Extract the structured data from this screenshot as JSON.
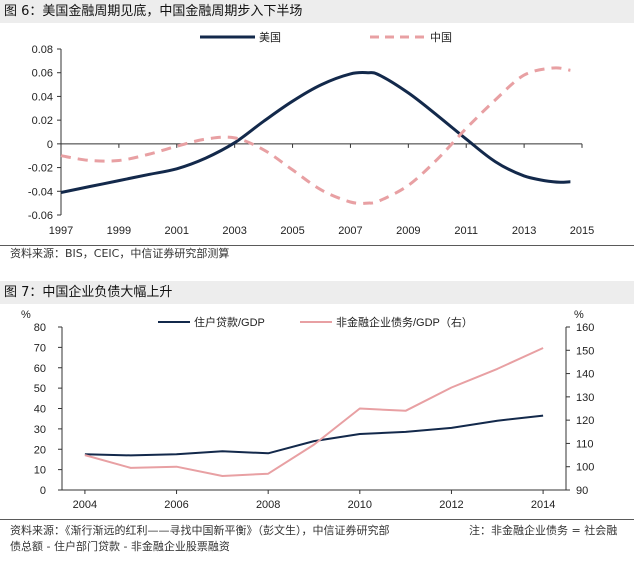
{
  "figures": [
    {
      "title": "图 6：美国金融周期见底，中国金融周期步入下半场",
      "source": "资料来源：BIS，CEIC，中信证券研究部测算"
    },
    {
      "title": "图 7：中国企业负债大幅上升",
      "source_line1": "资料来源：《渐行渐远的红利——寻找中国新平衡》（彭文生），中信证券研究部",
      "source_line2": "债总额 - 住户部门贷款 - 非金融企业股票融资",
      "note": "注：非金融企业债务 = 社会融"
    }
  ],
  "chart_data": [
    {
      "type": "line",
      "title": "美国金融周期见底，中国金融周期步入下半场",
      "xlim": [
        1997,
        2015
      ],
      "ylim": [
        -0.06,
        0.08
      ],
      "xticks": [
        "1997",
        "1999",
        "2001",
        "2003",
        "2005",
        "2007",
        "2009",
        "2011",
        "2013",
        "2015"
      ],
      "yticks": [
        "0.08",
        "0.06",
        "0.04",
        "0.02",
        "0",
        "-0.02",
        "-0.04",
        "-0.06"
      ],
      "grid": false,
      "legend": "top",
      "series": [
        {
          "name": "美国",
          "color": "#13294b",
          "dash": false,
          "points": [
            [
              1997,
              -0.041
            ],
            [
              1998,
              -0.036
            ],
            [
              1999,
              -0.031
            ],
            [
              2000,
              -0.026
            ],
            [
              2001,
              -0.021
            ],
            [
              2002,
              -0.012
            ],
            [
              2003,
              0.001
            ],
            [
              2004,
              0.019
            ],
            [
              2005,
              0.036
            ],
            [
              2006,
              0.05
            ],
            [
              2007,
              0.059
            ],
            [
              2007.6,
              0.06
            ],
            [
              2008,
              0.058
            ],
            [
              2009,
              0.043
            ],
            [
              2010,
              0.024
            ],
            [
              2011,
              0.004
            ],
            [
              2012,
              -0.015
            ],
            [
              2013,
              -0.027
            ],
            [
              2014,
              -0.032
            ],
            [
              2014.6,
              -0.032
            ]
          ]
        },
        {
          "name": "中国",
          "color": "#e8a0a3",
          "dash": true,
          "points": [
            [
              1997,
              -0.01
            ],
            [
              1998,
              -0.014
            ],
            [
              1999,
              -0.014
            ],
            [
              2000,
              -0.009
            ],
            [
              2001,
              -0.002
            ],
            [
              2002,
              0.004
            ],
            [
              2003,
              0.005
            ],
            [
              2004,
              -0.005
            ],
            [
              2005,
              -0.022
            ],
            [
              2006,
              -0.039
            ],
            [
              2007,
              -0.049
            ],
            [
              2007.6,
              -0.05
            ],
            [
              2008,
              -0.048
            ],
            [
              2009,
              -0.035
            ],
            [
              2010,
              -0.013
            ],
            [
              2011,
              0.013
            ],
            [
              2012,
              0.037
            ],
            [
              2013,
              0.058
            ],
            [
              2014,
              0.064
            ],
            [
              2014.6,
              0.062
            ]
          ]
        }
      ]
    },
    {
      "type": "line",
      "title": "中国企业负债大幅上升",
      "xlim": [
        2003.5,
        2014.5
      ],
      "ylim_left": [
        0,
        80
      ],
      "ylim_right": [
        90,
        160
      ],
      "xticks": [
        "2004",
        "2006",
        "2008",
        "2010",
        "2012",
        "2014"
      ],
      "yticks_left": [
        "80",
        "70",
        "60",
        "50",
        "40",
        "30",
        "20",
        "10",
        "0"
      ],
      "yticks_right": [
        "160",
        "150",
        "140",
        "130",
        "120",
        "110",
        "100",
        "90"
      ],
      "unit_left": "%",
      "unit_right": "%",
      "grid": false,
      "legend": "top",
      "series": [
        {
          "name": "住户贷款/GDP",
          "axis": "left",
          "color": "#13294b",
          "points": [
            [
              2004,
              17.5
            ],
            [
              2005,
              17
            ],
            [
              2006,
              17.5
            ],
            [
              2007,
              19
            ],
            [
              2008,
              18
            ],
            [
              2009,
              24
            ],
            [
              2010,
              27.5
            ],
            [
              2011,
              28.5
            ],
            [
              2012,
              30.5
            ],
            [
              2013,
              34
            ],
            [
              2014,
              36.5
            ]
          ]
        },
        {
          "name": "非金融企业债务/GDP（右）",
          "axis": "right",
          "color": "#e8a0a3",
          "points": [
            [
              2004,
              105
            ],
            [
              2005,
              99.5
            ],
            [
              2006,
              100
            ],
            [
              2007,
              96
            ],
            [
              2008,
              97
            ],
            [
              2009,
              109.5
            ],
            [
              2010,
              125
            ],
            [
              2011,
              124
            ],
            [
              2012,
              134
            ],
            [
              2013,
              142
            ],
            [
              2014,
              151
            ]
          ]
        }
      ]
    }
  ]
}
